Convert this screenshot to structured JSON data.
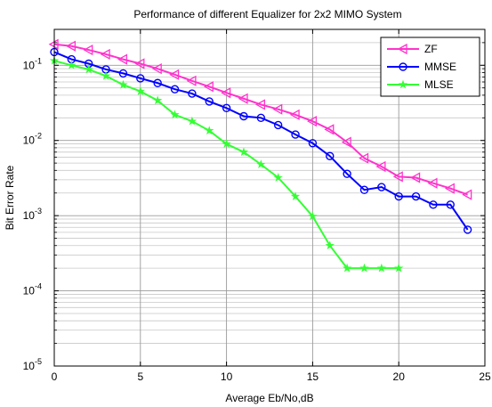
{
  "chart_data": {
    "type": "line",
    "title": "Performance of different Equalizer for 2x2 MIMO System",
    "xlabel": "Average Eb/No,dB",
    "ylabel": "Bit Error Rate",
    "xlim": [
      0,
      25
    ],
    "ylim": [
      1e-05,
      0.3
    ],
    "yscale": "log",
    "grid": true,
    "legend_position": "top-right",
    "x_ticks": [
      0,
      5,
      10,
      15,
      20,
      25
    ],
    "y_ticks": [
      {
        "value": 1e-05,
        "base": "10",
        "exp": "-5"
      },
      {
        "value": 0.0001,
        "base": "10",
        "exp": "-4"
      },
      {
        "value": 0.001,
        "base": "10",
        "exp": "-3"
      },
      {
        "value": 0.01,
        "base": "10",
        "exp": "-2"
      },
      {
        "value": 0.1,
        "base": "10",
        "exp": "-1"
      }
    ],
    "series": [
      {
        "name": "ZF",
        "color": "#ff33cc",
        "marker": "triangle-left",
        "x": [
          0,
          1,
          2,
          3,
          4,
          5,
          6,
          7,
          8,
          9,
          10,
          11,
          12,
          13,
          14,
          15,
          16,
          17,
          18,
          19,
          20,
          21,
          22,
          23,
          24
        ],
        "y": [
          0.19,
          0.18,
          0.16,
          0.14,
          0.12,
          0.105,
          0.09,
          0.075,
          0.062,
          0.052,
          0.043,
          0.036,
          0.03,
          0.026,
          0.022,
          0.018,
          0.014,
          0.0095,
          0.0058,
          0.0045,
          0.0033,
          0.0032,
          0.0027,
          0.0023,
          0.0019
        ]
      },
      {
        "name": "MMSE",
        "color": "#0000ff",
        "marker": "circle",
        "x": [
          0,
          1,
          2,
          3,
          4,
          5,
          6,
          7,
          8,
          9,
          10,
          11,
          12,
          13,
          14,
          15,
          16,
          17,
          18,
          19,
          20,
          21,
          22,
          23,
          24
        ],
        "y": [
          0.15,
          0.12,
          0.105,
          0.088,
          0.078,
          0.067,
          0.058,
          0.048,
          0.042,
          0.033,
          0.027,
          0.021,
          0.02,
          0.016,
          0.012,
          0.0092,
          0.0062,
          0.0036,
          0.0022,
          0.0024,
          0.0018,
          0.0018,
          0.0014,
          0.0014,
          0.00065
        ]
      },
      {
        "name": "MLSE",
        "color": "#33ff33",
        "marker": "star",
        "x": [
          0,
          1,
          2,
          3,
          4,
          5,
          6,
          7,
          8,
          9,
          10,
          11,
          12,
          13,
          14,
          15,
          16,
          17,
          18,
          19,
          20
        ],
        "y": [
          0.115,
          0.1,
          0.088,
          0.072,
          0.055,
          0.045,
          0.034,
          0.022,
          0.018,
          0.0135,
          0.009,
          0.007,
          0.0048,
          0.0032,
          0.0018,
          0.00098,
          0.0004,
          0.0002,
          0.0002,
          0.0002,
          0.0002
        ]
      }
    ]
  }
}
